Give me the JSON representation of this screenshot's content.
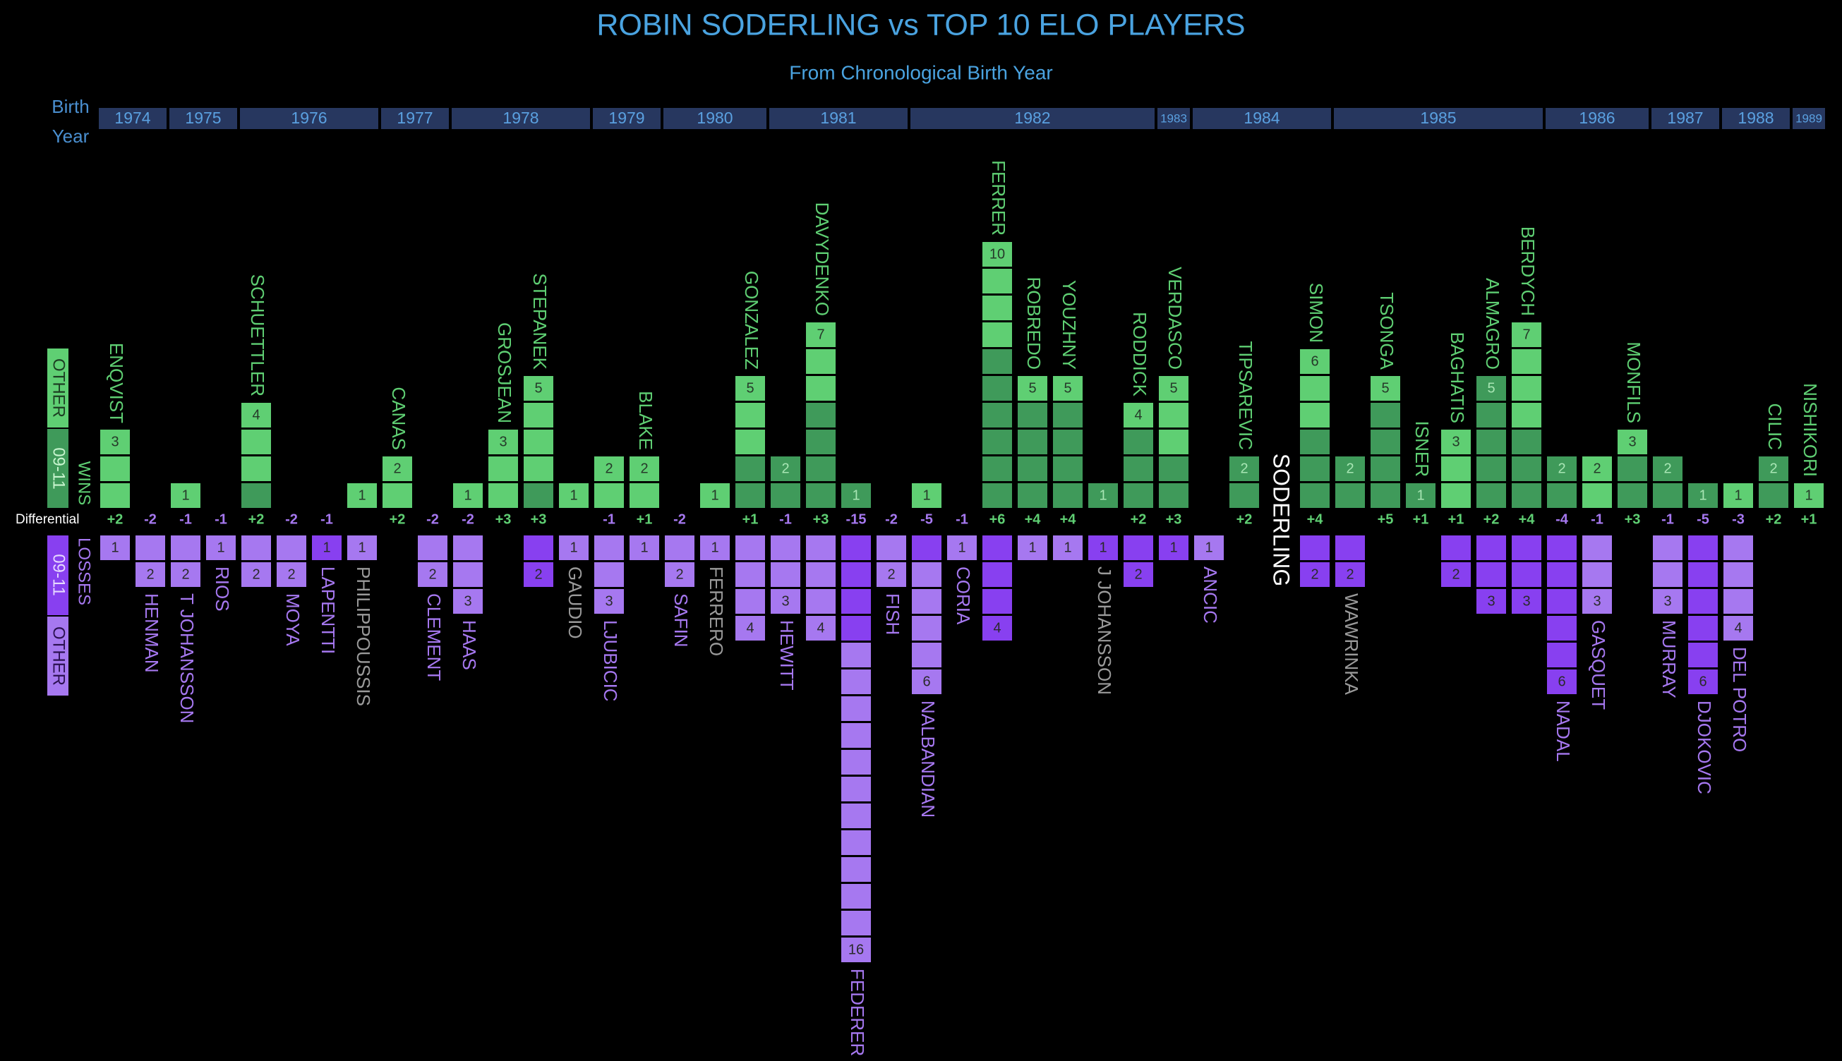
{
  "chart_data": {
    "type": "diverging-bar",
    "title": "ROBIN SODERLING vs TOP 10 ELO PLAYERS",
    "subtitle": "From Chronological Birth Year",
    "birth_year_label": [
      "Birth",
      "Year"
    ],
    "differential_label": "Differential",
    "segment_names": [
      "09-11",
      "OTHER"
    ],
    "categories": [
      "ENQVIST",
      "HENMAN",
      "T JOHANSSON",
      "RIOS",
      "SCHUETTLER",
      "MOYA",
      "LAPENTTI",
      "PHILIPPOUSSIS",
      "CANAS",
      "CLEMENT",
      "HAAS",
      "GROSJEAN",
      "STEPANEK",
      "GAUDIO",
      "LJUBICIC",
      "BLAKE",
      "SAFIN",
      "FERRERO",
      "GONZALEZ",
      "HEWITT",
      "DAVYDENKO",
      "FEDERER",
      "FISH",
      "NALBANDIAN",
      "CORIA",
      "FERRER",
      "ROBREDO",
      "YOUZHNY",
      "J JOHANSSON",
      "RODDICK",
      "VERDASCO",
      "ANCIC",
      "TIPSAREVIC",
      "SODERLING",
      "SIMON",
      "WAWRINKA",
      "TSONGA",
      "ISNER",
      "BAGHATIS",
      "ALMAGRO",
      "BERDYCH",
      "NADAL",
      "GASQUET",
      "MONFILS",
      "MURRAY",
      "DJOKOVIC",
      "DEL POTRO",
      "CILIC",
      "NISHIKORI"
    ],
    "birth_years": [
      "1974",
      "1974",
      "1975",
      "1975",
      "1976",
      "1976",
      "1976",
      "1976",
      "1977",
      "1977",
      "1978",
      "1978",
      "1978",
      "1978",
      "1979",
      "1979",
      "1980",
      "1980",
      "1980",
      "1981",
      "1981",
      "1981",
      "1981",
      "1982",
      "1982",
      "1982",
      "1982",
      "1982",
      "1982",
      "1982",
      "1983",
      "1984",
      "1984",
      "1984",
      "1984",
      "1985",
      "1985",
      "1985",
      "1985",
      "1985",
      "1985",
      "1986",
      "1986",
      "1986",
      "1987",
      "1987",
      "1988",
      "1988",
      "1989"
    ],
    "series": [
      {
        "name": "WINS",
        "color": "#5fcf73",
        "color_0911": "#3f9a5a",
        "values": [
          3,
          0,
          1,
          0,
          4,
          0,
          0,
          1,
          2,
          0,
          1,
          3,
          5,
          1,
          2,
          2,
          0,
          1,
          5,
          2,
          7,
          1,
          0,
          1,
          0,
          10,
          5,
          5,
          1,
          4,
          5,
          0,
          2,
          null,
          6,
          2,
          5,
          1,
          3,
          5,
          7,
          2,
          2,
          3,
          2,
          1,
          1,
          2,
          1
        ],
        "values_0911": [
          0,
          0,
          0,
          0,
          1,
          0,
          0,
          0,
          0,
          0,
          0,
          0,
          1,
          0,
          0,
          0,
          0,
          0,
          2,
          2,
          4,
          1,
          0,
          0,
          0,
          6,
          4,
          4,
          1,
          3,
          2,
          0,
          2,
          null,
          3,
          2,
          4,
          1,
          0,
          5,
          3,
          2,
          0,
          2,
          2,
          1,
          0,
          2,
          0
        ]
      },
      {
        "name": "LOSSES",
        "color": "#a678f0",
        "color_0911": "#8840f0",
        "values": [
          1,
          2,
          2,
          1,
          2,
          2,
          1,
          1,
          0,
          2,
          3,
          0,
          2,
          1,
          3,
          1,
          2,
          1,
          4,
          3,
          4,
          16,
          2,
          6,
          1,
          4,
          1,
          1,
          1,
          2,
          1,
          1,
          0,
          null,
          2,
          2,
          0,
          0,
          2,
          3,
          3,
          6,
          3,
          0,
          3,
          6,
          4,
          0,
          0
        ],
        "values_0911": [
          0,
          0,
          0,
          0,
          0,
          0,
          1,
          0,
          0,
          0,
          0,
          0,
          2,
          0,
          0,
          0,
          0,
          0,
          0,
          0,
          0,
          4,
          0,
          1,
          0,
          4,
          0,
          0,
          1,
          2,
          1,
          0,
          0,
          null,
          2,
          2,
          0,
          0,
          2,
          3,
          3,
          6,
          0,
          0,
          0,
          6,
          0,
          0,
          0
        ]
      }
    ],
    "differential": {
      "values": [
        2,
        -2,
        -1,
        -1,
        2,
        -2,
        -1,
        null,
        2,
        -2,
        -2,
        3,
        3,
        null,
        -1,
        1,
        -2,
        null,
        1,
        -1,
        3,
        -15,
        -2,
        -5,
        -1,
        6,
        4,
        4,
        null,
        2,
        3,
        null,
        2,
        null,
        4,
        null,
        5,
        1,
        1,
        2,
        4,
        -4,
        -1,
        3,
        -1,
        -5,
        -3,
        2,
        1
      ],
      "value_labels": [
        "+2",
        "-2",
        "-1",
        "-1",
        "+2",
        "-2",
        "-1",
        null,
        "+2",
        "-2",
        "-2",
        "+3",
        "+3",
        null,
        "-1",
        "+1",
        "-2",
        null,
        "+1",
        "-1",
        "+3",
        "-15",
        "-2",
        "-5",
        "-1",
        "+6",
        "+4",
        "+4",
        null,
        "+2",
        "+3",
        null,
        "+2",
        null,
        "+4",
        null,
        "+5",
        "+1",
        "+1",
        "+2",
        "+4",
        "-4",
        "-1",
        "+3",
        "-1",
        "-5",
        "-3",
        "+2",
        "+1"
      ]
    }
  }
}
